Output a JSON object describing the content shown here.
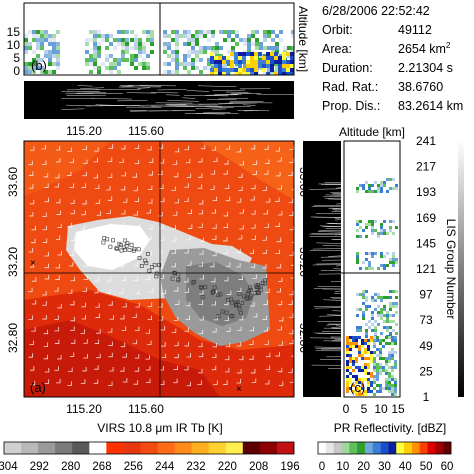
{
  "info": {
    "datetime": "6/28/2006 22:52:42",
    "rows": [
      {
        "label": "Orbit:",
        "value": "49112"
      },
      {
        "label": "Area:",
        "value": "2654 km",
        "sup": "2"
      },
      {
        "label": "Duration:",
        "value": "2.21304 s"
      },
      {
        "label": "Rad. Rat.:",
        "value": "38.6760"
      },
      {
        "label": "Prop. Dis.:",
        "value": "83.2614 km"
      }
    ]
  },
  "panel_b": {
    "label": "(b)",
    "y_title": "Altitude [km]",
    "y_ticks": [
      "0",
      "5",
      "10",
      "15"
    ]
  },
  "panel_a": {
    "label": "(a)",
    "x_ticks_top": [
      "115.20",
      "115.60"
    ],
    "x_ticks_bottom": [
      "115.20",
      "115.60"
    ],
    "y_ticks_left": [
      "33.60",
      "33.20",
      "32.80"
    ],
    "y_ticks_right": [
      "33.60",
      "33.20",
      "32.80"
    ]
  },
  "panel_c": {
    "label": "(c)",
    "x_title": "Altitude [km]",
    "x_ticks": [
      "0",
      "5",
      "10",
      "15"
    ],
    "y_title": "LIS Group Number",
    "y_ticks": [
      "1",
      "25",
      "49",
      "73",
      "97",
      "121",
      "145",
      "169",
      "193",
      "217",
      "241"
    ]
  },
  "colorbar_ir": {
    "title": "VIRS 10.8 μm IR Tb [K]",
    "ticks": [
      "304",
      "292",
      "280",
      "268",
      "256",
      "244",
      "232",
      "220",
      "208",
      "196"
    ],
    "colors": [
      "#d0d0d0",
      "#b8b8b8",
      "#9a9a9a",
      "#7a7a7a",
      "#5a5a5a",
      "#ffffff",
      "#ff3300",
      "#e8360e",
      "#f44b10",
      "#ff6a14",
      "#ff8c1a",
      "#ffb020",
      "#ffd030",
      "#fff050",
      "#5a0000",
      "#8b0000",
      "#c01010"
    ]
  },
  "colorbar_pr": {
    "title": "PR Reflectivity. [dBZ]",
    "ticks": [
      "0",
      "10",
      "20",
      "30",
      "40",
      "50",
      "60"
    ],
    "colors": [
      "#ffffff",
      "#e6e6e6",
      "#c8c8c8",
      "#a0d8a0",
      "#5cbf5c",
      "#2e9e2e",
      "#6fa8dc",
      "#3d7fd6",
      "#1a50c8",
      "#0a20a0",
      "#ffff40",
      "#ffd000",
      "#ff9000",
      "#ff4000",
      "#e00000",
      "#a00000",
      "#600000"
    ]
  },
  "chart_data": [
    {
      "type": "heatmap",
      "panel": "(a)",
      "xlabel": "",
      "ylabel": "",
      "x_ticks": [
        115.2,
        115.6
      ],
      "y_ticks": [
        33.6,
        33.2,
        32.8
      ],
      "xlim": [
        114.98,
        115.88
      ],
      "ylim": [
        32.58,
        33.72
      ]
    },
    {
      "type": "heatmap",
      "panel": "(b)",
      "ylabel": "Altitude [km]",
      "ylim": [
        0,
        15
      ],
      "y_ticks": [
        0,
        5,
        10,
        15
      ]
    },
    {
      "type": "heatmap",
      "panel": "(c)",
      "xlabel": "Altitude [km]",
      "ylabel": "LIS Group Number",
      "xlim": [
        0,
        15
      ],
      "ylim": [
        1,
        241
      ],
      "x_ticks": [
        0,
        5,
        10,
        15
      ],
      "y_ticks": [
        1,
        25,
        49,
        73,
        97,
        121,
        145,
        169,
        193,
        217,
        241
      ]
    }
  ]
}
